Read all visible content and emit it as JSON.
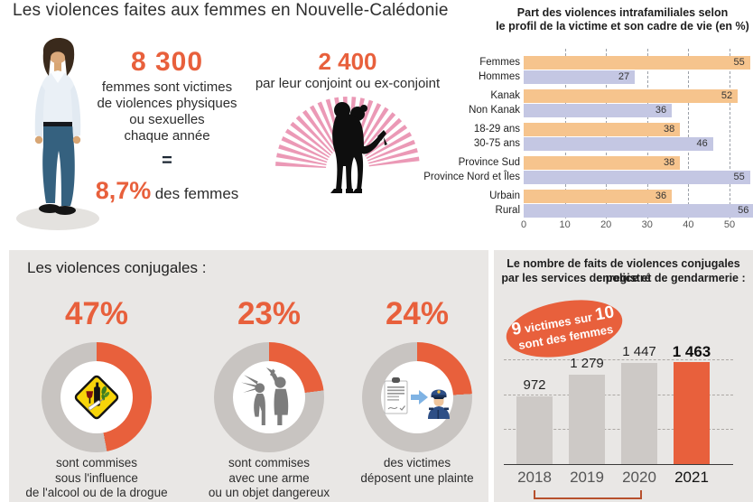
{
  "title": "Les violences faites aux femmes en Nouvelle-Calédonie",
  "colors": {
    "accent": "#E8603C",
    "bar_orange": "#F6C48D",
    "bar_lavender": "#C4C7E3",
    "bar_gray": "#CDC9C6",
    "donut_gray": "#C8C4C1",
    "panel_gray": "#E9E7E5",
    "ray_pink": "#E887A9"
  },
  "top_left": {
    "value": "8 300",
    "lines": [
      "femmes sont victimes",
      "de violences physiques",
      "ou sexuelles",
      "chaque année"
    ],
    "equals": "=",
    "pct": "8,7%",
    "pct_suffix": "des femmes"
  },
  "top_middle": {
    "value": "2 400",
    "label": "par leur conjoint ou ex-conjoint"
  },
  "conjugal_heading": "Les violences conjugales :",
  "badge": {
    "big1": "9",
    "mid": " victimes sur ",
    "big2": "10",
    "line2": "sont des femmes"
  },
  "chart_data": [
    {
      "id": "part-violences-intrafamiliales",
      "type": "bar",
      "orientation": "horizontal",
      "unit": "%",
      "title_lines": [
        "Part des violences intrafamiliales selon",
        "le profil de la victime et son cadre de vie (en %)"
      ],
      "x_ticks": [
        0,
        10,
        20,
        30,
        40,
        50
      ],
      "xlim": [
        0,
        56
      ],
      "grid": "dashed",
      "groups": [
        {
          "rows": [
            {
              "label": "Femmes",
              "value": 55,
              "color": "orange"
            },
            {
              "label": "Hommes",
              "value": 27,
              "color": "lavender"
            }
          ]
        },
        {
          "rows": [
            {
              "label": "Kanak",
              "value": 52,
              "color": "orange"
            },
            {
              "label": "Non Kanak",
              "value": 36,
              "color": "lavender"
            }
          ]
        },
        {
          "rows": [
            {
              "label": "18-29 ans",
              "value": 38,
              "color": "orange"
            },
            {
              "label": "30-75 ans",
              "value": 46,
              "color": "lavender"
            }
          ]
        },
        {
          "rows": [
            {
              "label": "Province Sud",
              "value": 38,
              "color": "orange"
            },
            {
              "label": "Province Nord et Îles",
              "value": 55,
              "color": "lavender"
            }
          ]
        },
        {
          "rows": [
            {
              "label": "Urbain",
              "value": 36,
              "color": "orange"
            },
            {
              "label": "Rural",
              "value": 56,
              "color": "lavender"
            }
          ]
        }
      ]
    },
    {
      "id": "violences-conjugales-donuts",
      "type": "pie",
      "items": [
        {
          "value": 47,
          "label": "47%",
          "icon": "alcohol-drug-warning-icon",
          "caption_lines": [
            "sont commises",
            "sous l'influence",
            "de l'alcool ou de la drogue"
          ]
        },
        {
          "value": 23,
          "label": "23%",
          "icon": "weapon-attack-icon",
          "caption_lines": [
            "sont commises",
            "avec une arme",
            "ou un objet dangereux"
          ]
        },
        {
          "value": 24,
          "label": "24%",
          "icon": "complaint-police-icon",
          "caption_lines": [
            "des victimes",
            "déposent une plainte"
          ]
        }
      ]
    },
    {
      "id": "faits-violences-conjugales-annees",
      "type": "bar",
      "title_lines": [
        "Le nombre de faits de violences conjugales enregistré",
        "par les services de police et de gendarmerie :"
      ],
      "categories": [
        "2018",
        "2019",
        "2020",
        "2021"
      ],
      "values": [
        972,
        1279,
        1447,
        1463
      ],
      "value_labels": [
        "972",
        "1 279",
        "1 447",
        "1 463"
      ],
      "highlight_index": 3,
      "gridlines": [
        500,
        1000,
        1500
      ],
      "ylim": [
        0,
        1550
      ],
      "bracket_categories": [
        "2018",
        "2020"
      ]
    }
  ]
}
